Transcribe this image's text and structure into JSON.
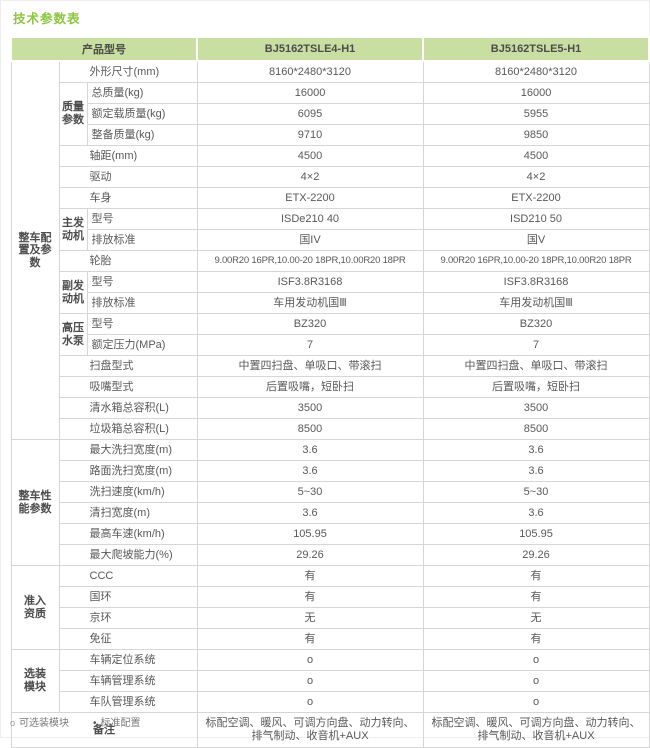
{
  "title": "技术参数表",
  "colors": {
    "title_green": "#8cc63e",
    "header_bg": "#c8dfa1",
    "border": "#d6d6d6",
    "text": "#595959"
  },
  "table": {
    "header": {
      "product_model": "产品型号",
      "model1": "BJ5162TSLE4-H1",
      "model2": "BJ5162TSLE5-H1"
    },
    "groups": {
      "config": "整车配置及参数",
      "performance": "整车性能参数",
      "qualification": "准入资质",
      "optional": "选装模块"
    },
    "subgroups": {
      "mass": "质量参数",
      "main_engine": "主发动机",
      "aux_engine": "副发动机",
      "pump": "高压水泵"
    },
    "rows": [
      {
        "label": "外形尺寸(mm)",
        "v1": "8160*2480*3120",
        "v2": "8160*2480*3120"
      },
      {
        "label": "总质量(kg)",
        "v1": "16000",
        "v2": "16000"
      },
      {
        "label": "额定载质量(kg)",
        "v1": "6095",
        "v2": "5955"
      },
      {
        "label": "整备质量(kg)",
        "v1": "9710",
        "v2": "9850"
      },
      {
        "label": "轴距(mm)",
        "v1": "4500",
        "v2": "4500"
      },
      {
        "label": "驱动",
        "v1": "4×2",
        "v2": "4×2"
      },
      {
        "label": "车身",
        "v1": "ETX-2200",
        "v2": "ETX-2200"
      },
      {
        "label": "型号",
        "v1": "ISDe210 40",
        "v2": "ISD210 50"
      },
      {
        "label": "排放标准",
        "v1": "国IV",
        "v2": "国V"
      },
      {
        "label": "轮胎",
        "v1": "9.00R20 16PR,10.00-20 18PR,10.00R20 18PR",
        "v2": "9.00R20 16PR,10.00-20 18PR,10.00R20 18PR"
      },
      {
        "label": "型号",
        "v1": "ISF3.8R3168",
        "v2": "ISF3.8R3168"
      },
      {
        "label": "排放标准",
        "v1": "车用发动机国Ⅲ",
        "v2": "车用发动机国Ⅲ"
      },
      {
        "label": "型号",
        "v1": "BZ320",
        "v2": "BZ320"
      },
      {
        "label": "额定压力(MPa)",
        "v1": "7",
        "v2": "7"
      },
      {
        "label": "扫盘型式",
        "v1": "中置四扫盘、单吸口、带滚扫",
        "v2": "中置四扫盘、单吸口、带滚扫"
      },
      {
        "label": "吸嘴型式",
        "v1": "后置吸嘴，短卧扫",
        "v2": "后置吸嘴，短卧扫"
      },
      {
        "label": "清水箱总容积(L)",
        "v1": "3500",
        "v2": "3500"
      },
      {
        "label": "垃圾箱总容积(L)",
        "v1": "8500",
        "v2": "8500"
      },
      {
        "label": "最大洗扫宽度(m)",
        "v1": "3.6",
        "v2": "3.6"
      },
      {
        "label": "路面洗扫宽度(m)",
        "v1": "3.6",
        "v2": "3.6"
      },
      {
        "label": "洗扫速度(km/h)",
        "v1": "5~30",
        "v2": "5~30"
      },
      {
        "label": "清扫宽度(m)",
        "v1": "3.6",
        "v2": "3.6"
      },
      {
        "label": "最高车速(km/h)",
        "v1": "105.95",
        "v2": "105.95"
      },
      {
        "label": "最大爬坡能力(%)",
        "v1": "29.26",
        "v2": "29.26"
      },
      {
        "label": "CCC",
        "v1": "有",
        "v2": "有"
      },
      {
        "label": "国环",
        "v1": "有",
        "v2": "有"
      },
      {
        "label": "京环",
        "v1": "无",
        "v2": "无"
      },
      {
        "label": "免征",
        "v1": "有",
        "v2": "有"
      },
      {
        "label": "车辆定位系统",
        "v1": "o",
        "v2": "o"
      },
      {
        "label": "车辆管理系统",
        "v1": "o",
        "v2": "o"
      },
      {
        "label": "车队管理系统",
        "v1": "o",
        "v2": "o"
      }
    ],
    "remark": {
      "label": "备注",
      "v1": "标配空调、暖风、可调方向盘、动力转向、排气制动、收音机+AUX",
      "v2": "标配空调、暖风、可调方向盘、动力转向、排气制动、收音机+AUX"
    }
  },
  "legend": {
    "optional_marker": "o",
    "optional_label": "可选装模块",
    "standard_marker": "•",
    "standard_label": "标准配置"
  }
}
